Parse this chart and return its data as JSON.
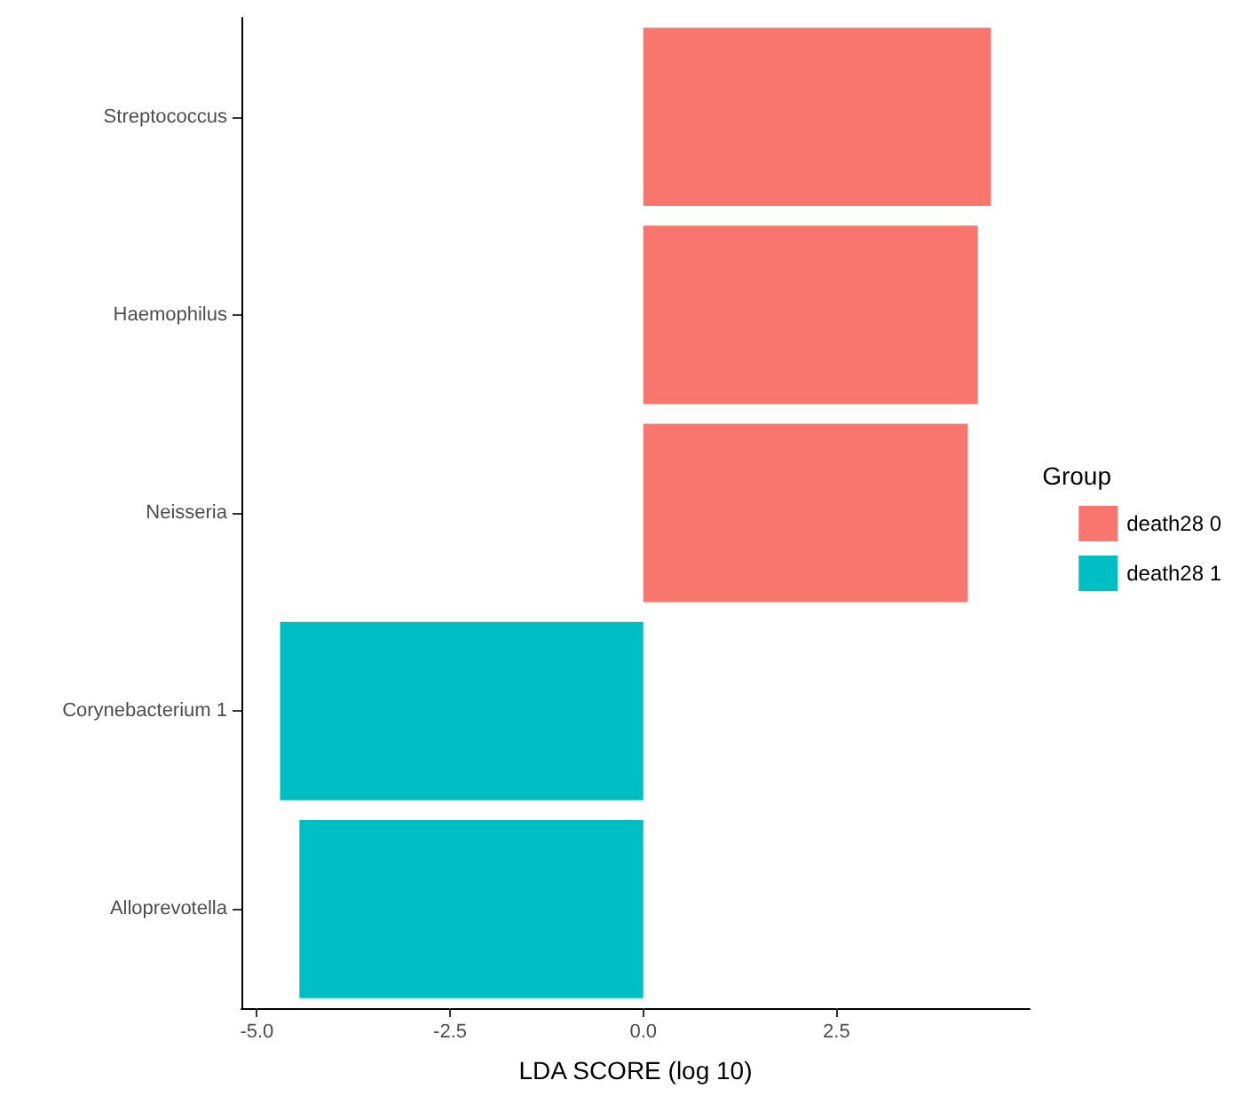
{
  "chart_data": {
    "type": "bar",
    "orientation": "horizontal",
    "xlabel": "LDA SCORE (log 10)",
    "legend_title": "Group",
    "categories": [
      "Streptococcus",
      "Haemophilus",
      "Neisseria",
      "Corynebacterium 1",
      "Alloprevotella"
    ],
    "series": [
      {
        "name": "death28 0",
        "color": "#f8766d",
        "values": [
          4.5,
          4.33,
          4.2,
          null,
          null
        ]
      },
      {
        "name": "death28 1",
        "color": "#00bfc4",
        "values": [
          null,
          null,
          null,
          -4.7,
          -4.45
        ]
      }
    ],
    "xlim": [
      -5.2,
      5.0
    ],
    "xticks": [
      {
        "value": -5,
        "label": "-5.0"
      },
      {
        "value": -2.5,
        "label": "-2.5"
      },
      {
        "value": 0,
        "label": "0.0"
      },
      {
        "value": 2.5,
        "label": "2.5"
      }
    ],
    "grid": false,
    "legend": "right"
  }
}
